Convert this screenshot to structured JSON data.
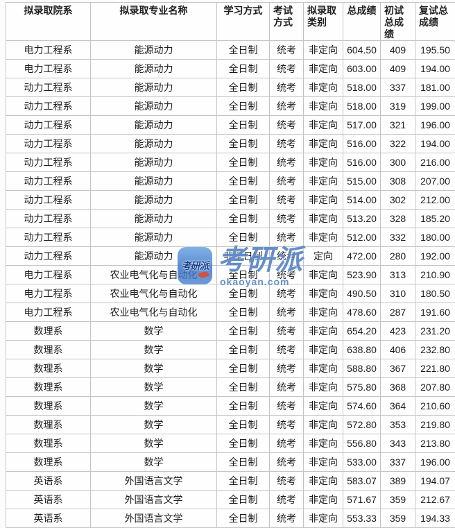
{
  "watermark": {
    "icon_text": "考研派",
    "brand_text": "考研派",
    "site_text": "okaoyan.com",
    "brand_color": "#3b6fba",
    "icon_color": "#3a72c4",
    "accent_color": "#e0482e"
  },
  "table": {
    "columns": [
      {
        "key": "dept",
        "label": "拟录取院系"
      },
      {
        "key": "major",
        "label": "拟录取专业名称"
      },
      {
        "key": "study_mode",
        "label": "学习方式"
      },
      {
        "key": "exam_mode",
        "label": "考试方式"
      },
      {
        "key": "category",
        "label": "拟录取类别"
      },
      {
        "key": "total",
        "label": "总成绩"
      },
      {
        "key": "initial",
        "label": "初试总成绩"
      },
      {
        "key": "retest",
        "label": "复试总成绩"
      }
    ],
    "rows": [
      [
        "电力工程系",
        "能源动力",
        "全日制",
        "统考",
        "非定向",
        "604.50",
        "409",
        "195.50"
      ],
      [
        "电力工程系",
        "能源动力",
        "全日制",
        "统考",
        "非定向",
        "603.00",
        "409",
        "194.00"
      ],
      [
        "动力工程系",
        "能源动力",
        "全日制",
        "统考",
        "非定向",
        "518.00",
        "337",
        "181.00"
      ],
      [
        "动力工程系",
        "能源动力",
        "全日制",
        "统考",
        "非定向",
        "518.00",
        "319",
        "199.00"
      ],
      [
        "动力工程系",
        "能源动力",
        "全日制",
        "统考",
        "非定向",
        "517.00",
        "321",
        "196.00"
      ],
      [
        "动力工程系",
        "能源动力",
        "全日制",
        "统考",
        "非定向",
        "516.00",
        "322",
        "194.00"
      ],
      [
        "动力工程系",
        "能源动力",
        "全日制",
        "统考",
        "非定向",
        "516.00",
        "300",
        "216.00"
      ],
      [
        "动力工程系",
        "能源动力",
        "全日制",
        "统考",
        "非定向",
        "515.00",
        "308",
        "207.00"
      ],
      [
        "动力工程系",
        "能源动力",
        "全日制",
        "统考",
        "非定向",
        "514.00",
        "302",
        "212.00"
      ],
      [
        "动力工程系",
        "能源动力",
        "全日制",
        "统考",
        "非定向",
        "513.20",
        "328",
        "185.20"
      ],
      [
        "动力工程系",
        "能源动力",
        "全日制",
        "统考",
        "非定向",
        "512.00",
        "332",
        "180.00"
      ],
      [
        "动力工程系",
        "能源动力",
        "非全日制",
        "统考",
        "定向",
        "472.00",
        "280",
        "192.00"
      ],
      [
        "电力工程系",
        "农业电气化与自动化",
        "全日制",
        "统考",
        "非定向",
        "523.90",
        "313",
        "210.90"
      ],
      [
        "电力工程系",
        "农业电气化与自动化",
        "全日制",
        "统考",
        "非定向",
        "490.50",
        "310",
        "180.50"
      ],
      [
        "电力工程系",
        "农业电气化与自动化",
        "全日制",
        "统考",
        "非定向",
        "478.60",
        "287",
        "191.60"
      ],
      [
        "数理系",
        "数学",
        "全日制",
        "统考",
        "非定向",
        "654.20",
        "423",
        "231.20"
      ],
      [
        "数理系",
        "数学",
        "全日制",
        "统考",
        "非定向",
        "638.80",
        "406",
        "232.80"
      ],
      [
        "数理系",
        "数学",
        "全日制",
        "统考",
        "非定向",
        "588.80",
        "367",
        "221.80"
      ],
      [
        "数理系",
        "数学",
        "全日制",
        "统考",
        "非定向",
        "575.80",
        "368",
        "207.80"
      ],
      [
        "数理系",
        "数学",
        "全日制",
        "统考",
        "非定向",
        "574.60",
        "364",
        "210.60"
      ],
      [
        "数理系",
        "数学",
        "全日制",
        "统考",
        "非定向",
        "572.80",
        "353",
        "219.80"
      ],
      [
        "数理系",
        "数学",
        "全日制",
        "统考",
        "非定向",
        "556.80",
        "343",
        "213.80"
      ],
      [
        "数理系",
        "数学",
        "全日制",
        "统考",
        "非定向",
        "533.00",
        "337",
        "196.00"
      ],
      [
        "英语系",
        "外国语言文学",
        "全日制",
        "统考",
        "非定向",
        "583.07",
        "389",
        "194.07"
      ],
      [
        "英语系",
        "外国语言文学",
        "全日制",
        "统考",
        "非定向",
        "571.67",
        "359",
        "212.67"
      ],
      [
        "英语系",
        "外国语言文学",
        "全日制",
        "统考",
        "非定向",
        "553.33",
        "359",
        "194.33"
      ]
    ]
  }
}
